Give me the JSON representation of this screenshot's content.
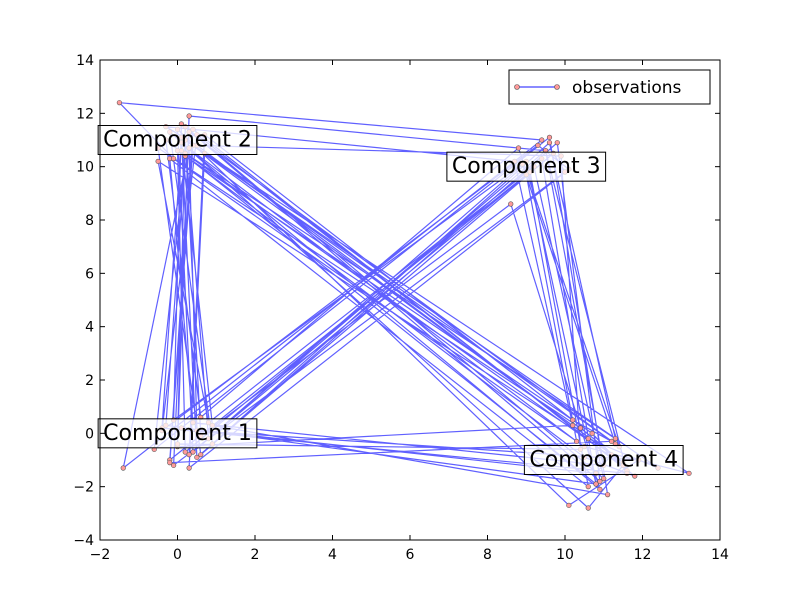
{
  "chart_data": {
    "type": "line",
    "title": "",
    "xlabel": "",
    "ylabel": "",
    "xlim": [
      -2,
      14
    ],
    "ylim": [
      -4,
      14
    ],
    "xticks": [
      -2,
      0,
      2,
      4,
      6,
      8,
      10,
      12,
      14
    ],
    "yticks": [
      -4,
      -2,
      0,
      2,
      4,
      6,
      8,
      10,
      12,
      14
    ],
    "grid": false,
    "legend": {
      "placement": "top-right",
      "entries": [
        "observations"
      ]
    },
    "series": [
      {
        "name": "observations",
        "color": "#4444ff",
        "marker_color": "#ff9999",
        "marker": "o",
        "x": [
          0.1,
          10.8,
          11.2,
          0.5,
          -0.3,
          8.7,
          10.2,
          0.0,
          0.3,
          9.5,
          11.0,
          0.4,
          -0.2,
          10.6,
          9.1,
          0.8,
          0.2,
          11.5,
          10.4,
          -0.5,
          0.6,
          9.8,
          10.9,
          0.1,
          -0.1,
          8.9,
          11.3,
          0.7,
          0.3,
          10.1,
          9.3,
          -0.4,
          0.5,
          11.8,
          10.5,
          0.2,
          -0.6,
          9.6,
          11.1,
          0.9,
          0.1,
          10.3,
          9.0,
          -0.2,
          0.4,
          11.6,
          10.7,
          0.0,
          0.2,
          9.4,
          10.8,
          -0.3,
          0.6,
          8.8,
          11.4,
          0.3,
          -0.1,
          10.0,
          9.7,
          0.5,
          0.1,
          12.4,
          10.6,
          -0.5,
          0.8,
          9.2,
          11.0,
          0.2,
          0.0,
          10.4,
          9.9,
          0.4,
          -0.2,
          11.2,
          10.2,
          0.7,
          0.3,
          9.5,
          11.6,
          -0.4,
          0.1,
          10.9,
          8.6,
          0.6,
          0.2,
          13.2,
          10.5,
          -0.1,
          -1.5,
          9.4,
          -1.4,
          0.3,
          0.5,
          11.9,
          10.1,
          0.0,
          0.4,
          9.0,
          10.8,
          -0.3,
          0.2,
          11.3,
          9.6,
          0.9,
          -0.2,
          10.6,
          11.5,
          0.1
        ],
        "y": [
          0.2,
          -1.5,
          -0.8,
          10.8,
          11.5,
          10.2,
          0.3,
          -0.5,
          11.9,
          10.6,
          -1.2,
          0.4,
          10.3,
          -2.0,
          9.8,
          -0.2,
          11.0,
          -1.1,
          0.2,
          10.7,
          -0.8,
          10.9,
          -1.8,
          11.6,
          0.5,
          10.1,
          -0.4,
          10.5,
          -1.3,
          9.9,
          10.8,
          0.1,
          11.2,
          -1.6,
          -0.9,
          10.4,
          -0.6,
          11.1,
          -2.3,
          0.3,
          10.9,
          -0.3,
          9.7,
          -1.0,
          11.4,
          -1.4,
          0.0,
          10.6,
          -0.7,
          10.3,
          -1.9,
          11.0,
          0.6,
          10.7,
          -0.5,
          11.3,
          -1.2,
          9.8,
          10.5,
          -0.9,
          11.1,
          -1.3,
          -0.2,
          10.2,
          0.4,
          10.0,
          -1.7,
          11.5,
          -0.4,
          -0.6,
          10.4,
          10.8,
          -1.1,
          -0.3,
          0.5,
          11.2,
          -0.8,
          10.6,
          -1.5,
          0.2,
          10.9,
          -2.1,
          8.6,
          -0.1,
          11.0,
          -1.5,
          -0.5,
          10.3,
          12.4,
          11.0,
          -1.3,
          10.7,
          0.1,
          -1.0,
          -2.7,
          11.4,
          -0.7,
          10.2,
          -1.9,
          0.3,
          10.5,
          -0.2,
          10.9,
          -0.4,
          11.3,
          -2.8,
          -1.2,
          10.6
        ]
      }
    ],
    "annotations": [
      {
        "text": "Component 1",
        "x": 0,
        "y": 0
      },
      {
        "text": "Component 2",
        "x": 0,
        "y": 11
      },
      {
        "text": "Component 3",
        "x": 9,
        "y": 10
      },
      {
        "text": "Component 4",
        "x": 11,
        "y": -1
      }
    ]
  }
}
